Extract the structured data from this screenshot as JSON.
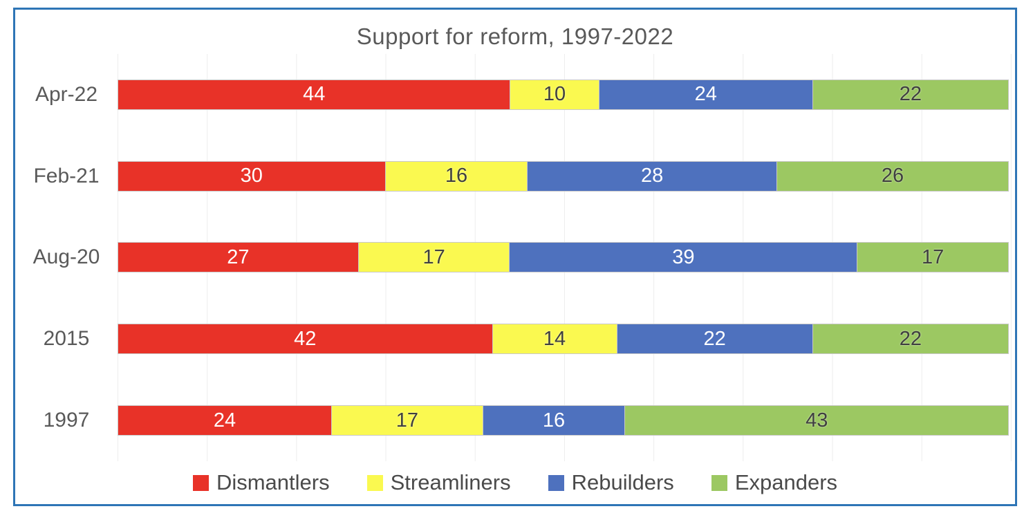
{
  "frame": {
    "border_color": "#2E75B6",
    "background": "#FFFFFF"
  },
  "styles": {
    "title_color": "#595959",
    "category_label_color": "#595959",
    "legend_text_color": "#4A4A4A",
    "segment_border_color": "#C8C8C8",
    "gridline_color": "#EDEDED"
  },
  "chart_data": {
    "type": "bar",
    "orientation": "horizontal-stacked",
    "title": "Support for reform, 1997-2022",
    "categories": [
      "Apr-22",
      "Feb-21",
      "Aug-20",
      "2015",
      "1997"
    ],
    "series": [
      {
        "name": "Dismantlers",
        "color": "#E83228",
        "label_color": "#FFFFFF",
        "values": [
          44,
          30,
          27,
          42,
          24
        ]
      },
      {
        "name": "Streamliners",
        "color": "#FAF950",
        "label_color": "#3F3F3F",
        "values": [
          10,
          16,
          17,
          14,
          17
        ]
      },
      {
        "name": "Rebuilders",
        "color": "#4E71BE",
        "label_color": "#FFFFFF",
        "values": [
          24,
          28,
          39,
          22,
          16
        ]
      },
      {
        "name": "Expanders",
        "color": "#9CC862",
        "label_color": "#3F3F3F",
        "values": [
          22,
          26,
          17,
          22,
          43
        ]
      }
    ],
    "xlim": [
      0,
      100
    ],
    "gridlines": {
      "every": 10,
      "axis": "x",
      "visible": true
    },
    "legend_position": "bottom",
    "legend": [
      "Dismantlers",
      "Streamliners",
      "Rebuilders",
      "Expanders"
    ]
  }
}
